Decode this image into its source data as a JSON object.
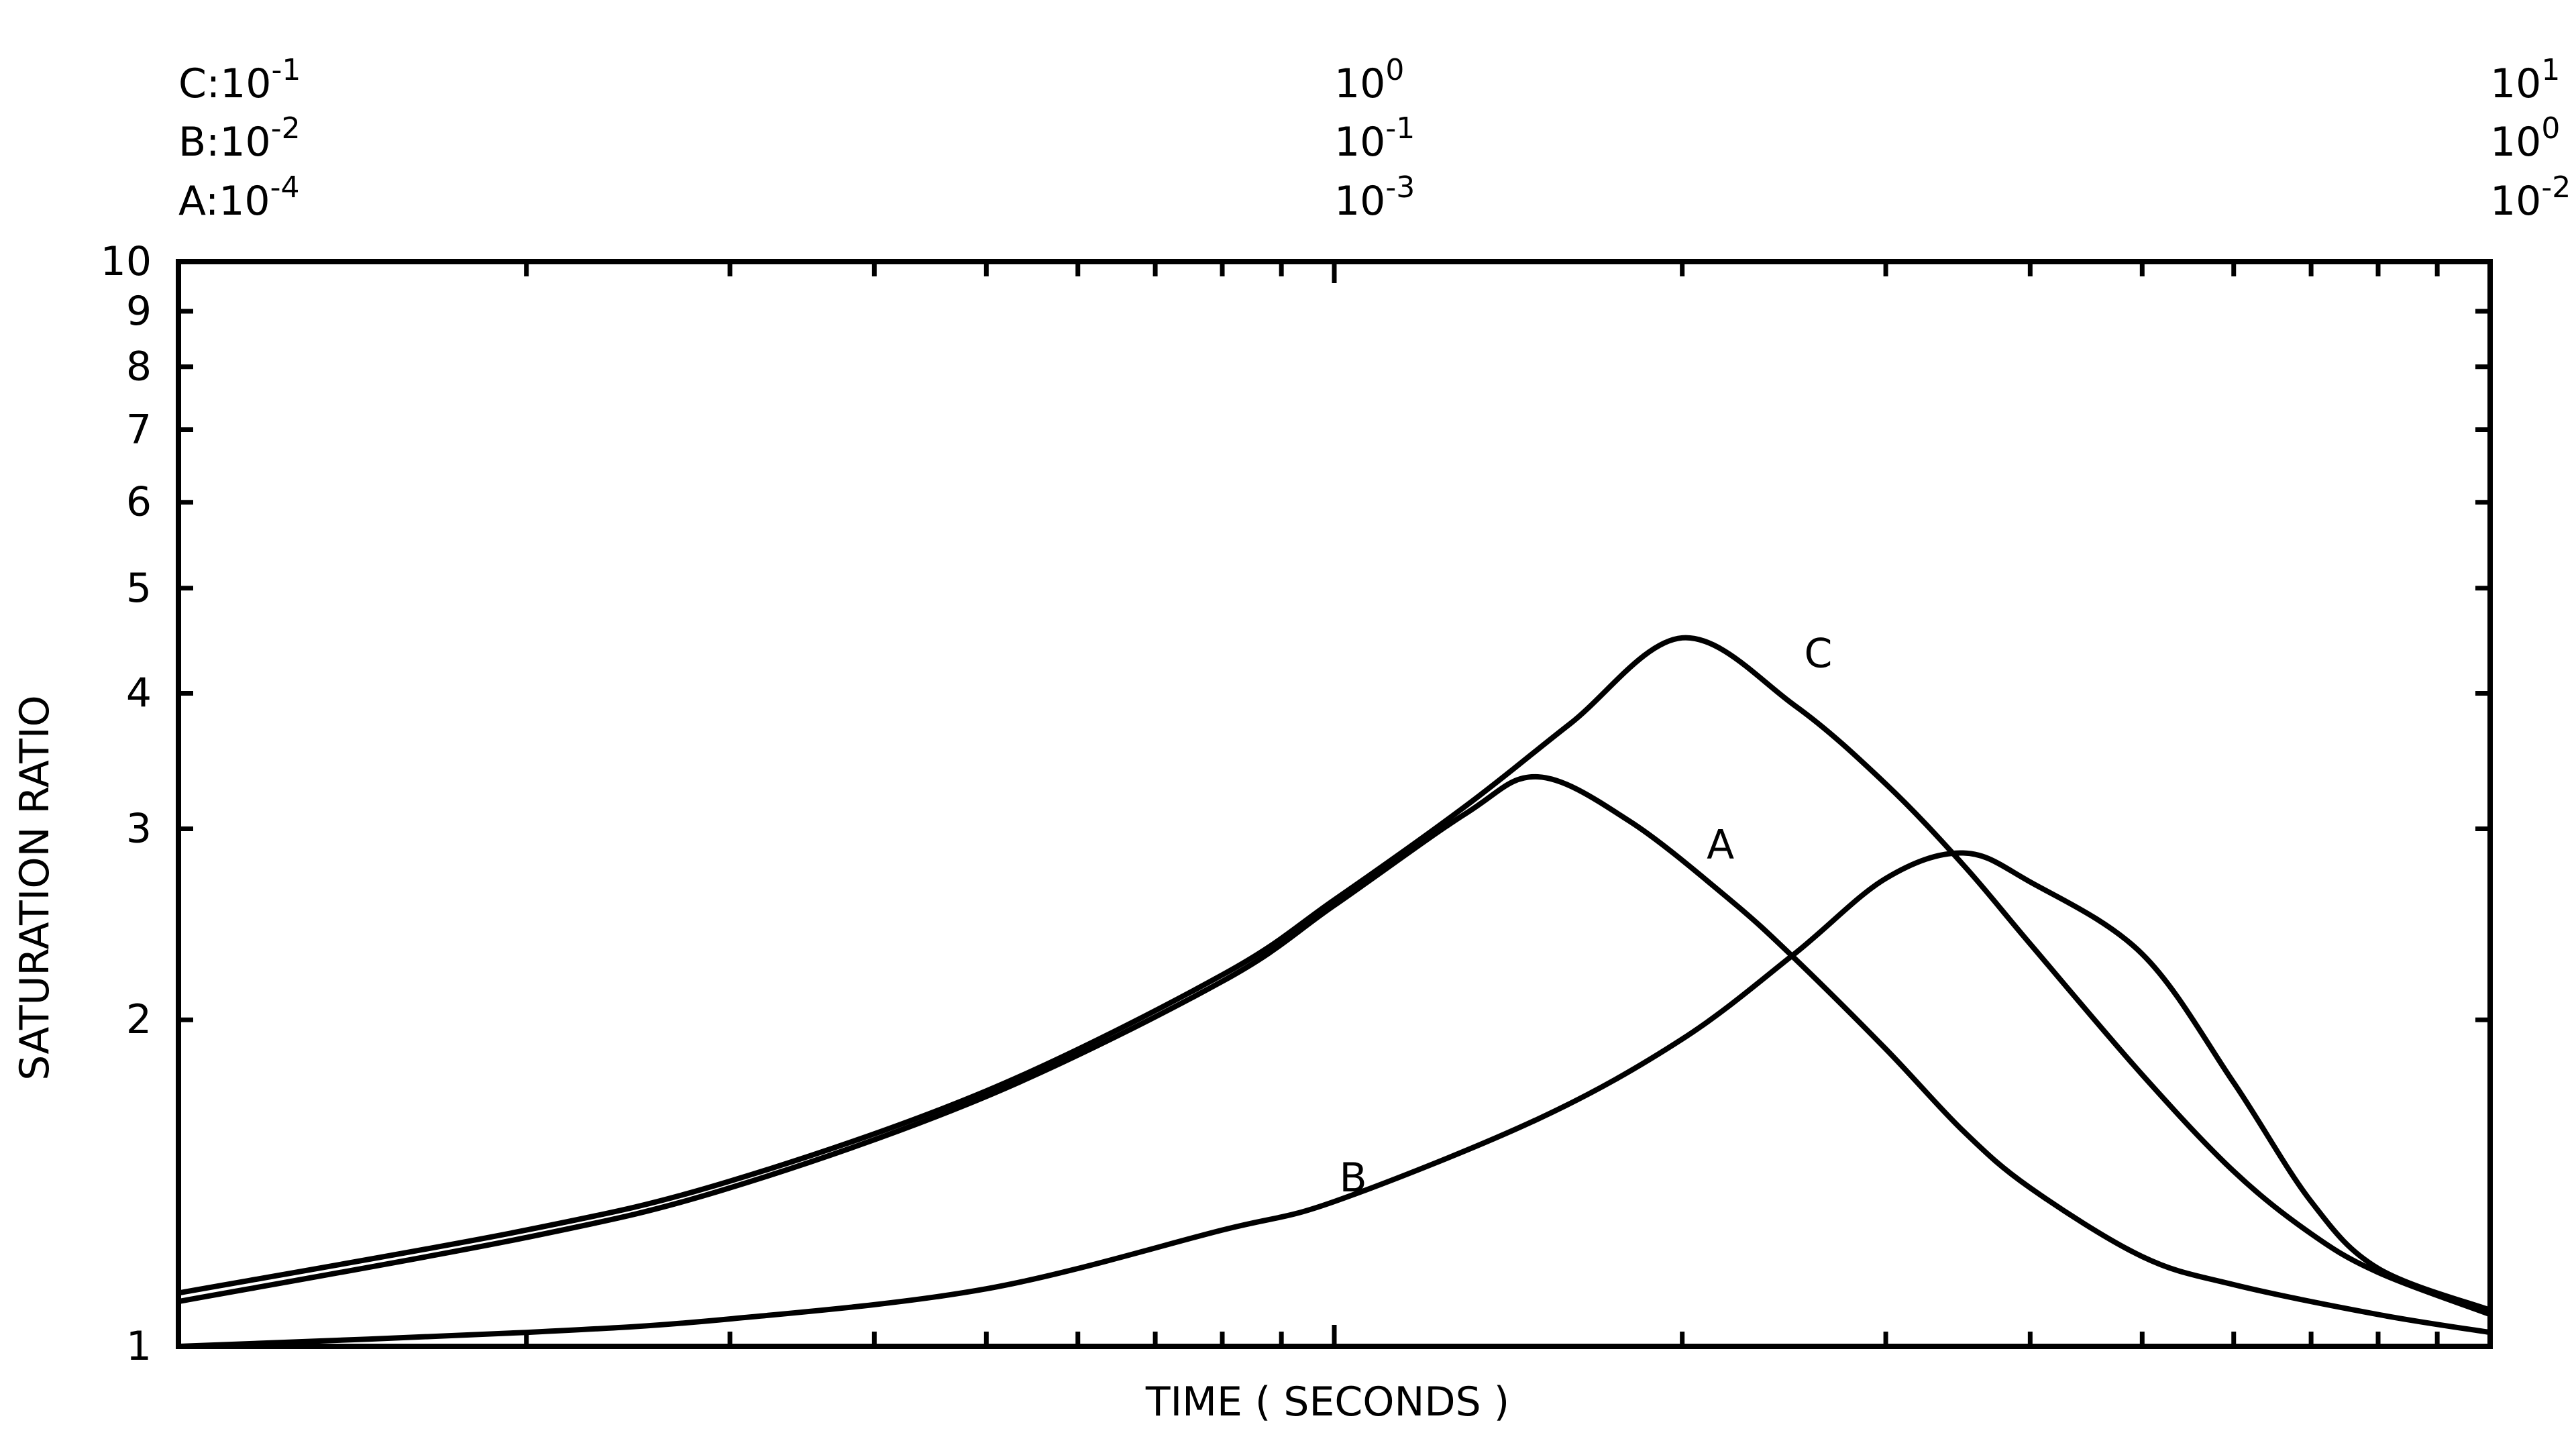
{
  "chart_data": {
    "type": "line",
    "title": "",
    "xlabel": "TIME ( SECONDS )",
    "ylabel": "SATURATION RATIO",
    "x_scale": "log",
    "y_scale": "log",
    "ylim": [
      1,
      10
    ],
    "grid": false,
    "legend": "none",
    "y_ticks": [
      {
        "value": 1,
        "label": "1"
      },
      {
        "value": 2,
        "label": "2"
      },
      {
        "value": 3,
        "label": "3"
      },
      {
        "value": 4,
        "label": "4"
      },
      {
        "value": 5,
        "label": "5"
      },
      {
        "value": 6,
        "label": "6"
      },
      {
        "value": 7,
        "label": "7"
      },
      {
        "value": 8,
        "label": "8"
      },
      {
        "value": 9,
        "label": "9"
      },
      {
        "value": 10,
        "label": "10"
      }
    ],
    "x_axes": [
      {
        "curve": "C",
        "xlim": [
          0.1,
          10
        ],
        "tick_labels": [
          {
            "value": 0.1,
            "base": "C:10",
            "exp": "-1"
          },
          {
            "value": 1,
            "base": "10",
            "exp": "0"
          },
          {
            "value": 10,
            "base": "10",
            "exp": "1"
          }
        ]
      },
      {
        "curve": "B",
        "xlim": [
          0.01,
          1
        ],
        "tick_labels": [
          {
            "value": 0.01,
            "base": "B:10",
            "exp": "-2"
          },
          {
            "value": 0.1,
            "base": "10",
            "exp": "-1"
          },
          {
            "value": 1,
            "base": "10",
            "exp": "0"
          }
        ]
      },
      {
        "curve": "A",
        "xlim": [
          0.0001,
          0.01
        ],
        "tick_labels": [
          {
            "value": 0.0001,
            "base": "A:10",
            "exp": "-4"
          },
          {
            "value": 0.001,
            "base": "10",
            "exp": "-3"
          },
          {
            "value": 0.01,
            "base": "10",
            "exp": "-2"
          }
        ]
      }
    ],
    "series": [
      {
        "name": "C",
        "x": [
          0.1,
          0.2,
          0.3,
          0.5,
          0.8,
          1.0,
          1.3,
          1.6,
          2.0,
          2.5,
          3.0,
          3.5,
          4.0,
          5.0,
          6.0,
          7.0,
          8.0,
          10.0
        ],
        "y": [
          1.12,
          1.28,
          1.42,
          1.72,
          2.2,
          2.58,
          3.15,
          3.75,
          4.5,
          3.9,
          3.3,
          2.78,
          2.35,
          1.78,
          1.45,
          1.27,
          1.17,
          1.07
        ]
      },
      {
        "name": "A",
        "x": [
          0.0001,
          0.0002,
          0.0003,
          0.0005,
          0.0008,
          0.001,
          0.0013,
          0.0015,
          0.0018,
          0.0022,
          0.0025,
          0.003,
          0.0035,
          0.004,
          0.005,
          0.006,
          0.008,
          0.01
        ],
        "y": [
          1.1,
          1.26,
          1.4,
          1.7,
          2.17,
          2.55,
          3.1,
          3.35,
          3.05,
          2.58,
          2.28,
          1.88,
          1.58,
          1.4,
          1.21,
          1.14,
          1.07,
          1.03
        ]
      },
      {
        "name": "B",
        "x": [
          0.01,
          0.02,
          0.03,
          0.05,
          0.08,
          0.1,
          0.15,
          0.2,
          0.25,
          0.3,
          0.35,
          0.4,
          0.5,
          0.6,
          0.7,
          0.8,
          1.0
        ],
        "y": [
          1.0,
          1.03,
          1.06,
          1.13,
          1.28,
          1.36,
          1.62,
          1.92,
          2.3,
          2.7,
          2.85,
          2.68,
          2.3,
          1.75,
          1.36,
          1.18,
          1.08
        ]
      }
    ],
    "annotations": [
      {
        "text": "C",
        "x": 2.55,
        "y": 4.35,
        "axis": "C"
      },
      {
        "text": "A",
        "x": 0.0021,
        "y": 2.9,
        "axis": "A"
      },
      {
        "text": "B",
        "x": 0.101,
        "y": 1.43,
        "axis": "B"
      }
    ]
  }
}
